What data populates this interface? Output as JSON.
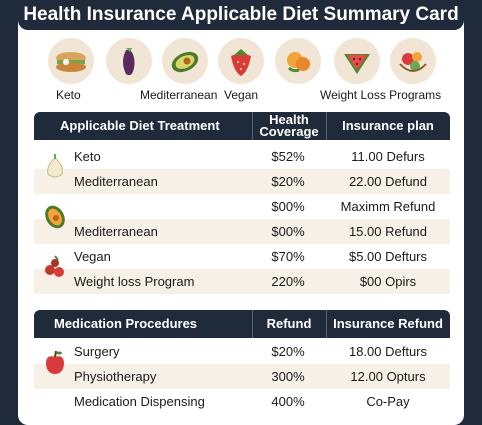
{
  "title": "Health Insurance Applicable Diet Summary Card",
  "diets": [
    {
      "label": "Keto",
      "icon": "sandwich-icon"
    },
    {
      "label": "Mediterranean",
      "icon": "eggplant-icon"
    },
    {
      "label": "Vegan",
      "icon": "avocado-icon"
    },
    {
      "label": "",
      "icon": "strawberry-icon"
    },
    {
      "label": "Weight Loss Programs",
      "icon": "citrus-icon"
    },
    {
      "label": "",
      "icon": "watermelon-icon"
    },
    {
      "label": "",
      "icon": "fruit-bowl-icon"
    }
  ],
  "diet_table": {
    "headers": [
      "Applicable Diet Treatment",
      "Health Coverage",
      "Insurance plan"
    ],
    "rows": [
      {
        "name": "Keto",
        "coverage": "$52%",
        "plan": "11.00 Defurs",
        "icon": "garlic-icon"
      },
      {
        "name": "Mediterranean",
        "coverage": "$20%",
        "plan": "22.00 Defund",
        "icon": ""
      },
      {
        "name": "",
        "coverage": "$00%",
        "plan": "Maximm Refund",
        "icon": "avocado-icon"
      },
      {
        "name": "Mediterranean",
        "coverage": "$00%",
        "plan": "15.00 Refund",
        "icon": ""
      },
      {
        "name": "Vegan",
        "coverage": "$70%",
        "plan": "$5.00 Defturs",
        "icon": "berries-icon"
      },
      {
        "name": "Weight loss Program",
        "coverage": "220%",
        "plan": "$00 Opirs",
        "icon": ""
      }
    ]
  },
  "medication_table": {
    "headers": [
      "Medication Procedures",
      "Refund",
      "Insurance Refund"
    ],
    "rows": [
      {
        "name": "Surgery",
        "refund": "$20%",
        "insurance": "18.00 Defturs",
        "icon": "apple-icon"
      },
      {
        "name": "Physiotherapy",
        "refund": "300%",
        "insurance": "12.00 Opturs",
        "icon": ""
      },
      {
        "name": "Medication Dispensing",
        "refund": "400%",
        "insurance": "Co-Pay",
        "icon": ""
      }
    ]
  },
  "colors": {
    "header_bg": "#1f2a3a",
    "alt_row": "#f6f0e6",
    "icon_bg": "#f1e6d6"
  }
}
